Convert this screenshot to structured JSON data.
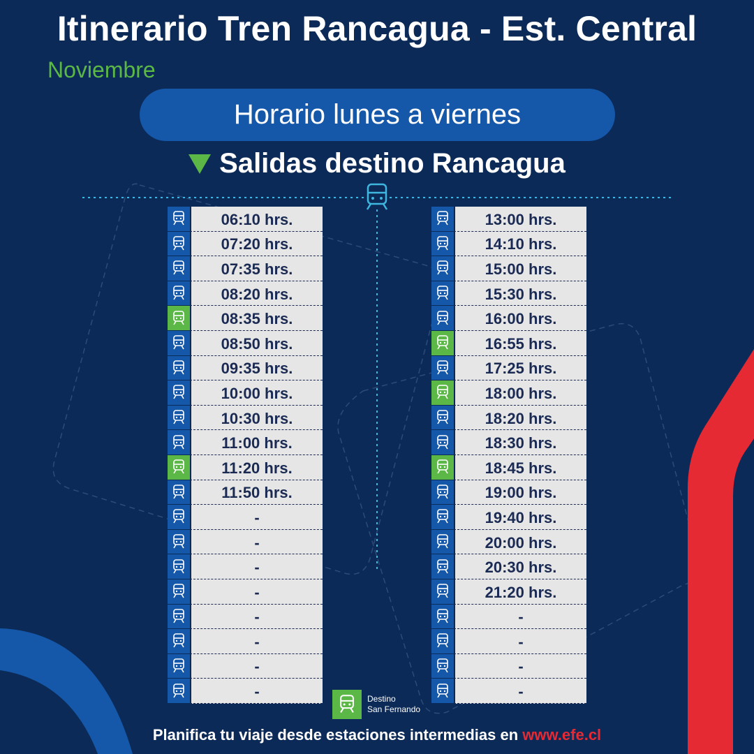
{
  "header": {
    "title": "Itinerario Tren Rancagua - Est. Central",
    "month": "Noviembre"
  },
  "schedule": {
    "day_label": "Horario lunes a viernes",
    "direction_label": "Salidas destino Rancagua"
  },
  "departures_left": [
    {
      "time": "06:10 hrs.",
      "san_fernando": false
    },
    {
      "time": "07:20 hrs.",
      "san_fernando": false
    },
    {
      "time": "07:35 hrs.",
      "san_fernando": false
    },
    {
      "time": "08:20 hrs.",
      "san_fernando": false
    },
    {
      "time": "08:35 hrs.",
      "san_fernando": true
    },
    {
      "time": "08:50 hrs.",
      "san_fernando": false
    },
    {
      "time": "09:35 hrs.",
      "san_fernando": false
    },
    {
      "time": "10:00 hrs.",
      "san_fernando": false
    },
    {
      "time": "10:30 hrs.",
      "san_fernando": false
    },
    {
      "time": "11:00 hrs.",
      "san_fernando": false
    },
    {
      "time": "11:20 hrs.",
      "san_fernando": true
    },
    {
      "time": "11:50 hrs.",
      "san_fernando": false
    },
    {
      "time": "-",
      "san_fernando": false
    },
    {
      "time": "-",
      "san_fernando": false
    },
    {
      "time": "-",
      "san_fernando": false
    },
    {
      "time": "-",
      "san_fernando": false
    },
    {
      "time": "-",
      "san_fernando": false
    },
    {
      "time": "-",
      "san_fernando": false
    },
    {
      "time": "-",
      "san_fernando": false
    },
    {
      "time": "-",
      "san_fernando": false
    }
  ],
  "departures_right": [
    {
      "time": "13:00 hrs.",
      "san_fernando": false
    },
    {
      "time": "14:10 hrs.",
      "san_fernando": false
    },
    {
      "time": "15:00 hrs.",
      "san_fernando": false
    },
    {
      "time": "15:30 hrs.",
      "san_fernando": false
    },
    {
      "time": "16:00 hrs.",
      "san_fernando": false
    },
    {
      "time": "16:55 hrs.",
      "san_fernando": true
    },
    {
      "time": "17:25 hrs.",
      "san_fernando": false
    },
    {
      "time": "18:00 hrs.",
      "san_fernando": true
    },
    {
      "time": "18:20 hrs.",
      "san_fernando": false
    },
    {
      "time": "18:30 hrs.",
      "san_fernando": false
    },
    {
      "time": "18:45 hrs.",
      "san_fernando": true
    },
    {
      "time": "19:00 hrs.",
      "san_fernando": false
    },
    {
      "time": "19:40 hrs.",
      "san_fernando": false
    },
    {
      "time": "20:00 hrs.",
      "san_fernando": false
    },
    {
      "time": "20:30 hrs.",
      "san_fernando": false
    },
    {
      "time": "21:20 hrs.",
      "san_fernando": false
    },
    {
      "time": "-",
      "san_fernando": false
    },
    {
      "time": "-",
      "san_fernando": false
    },
    {
      "time": "-",
      "san_fernando": false
    },
    {
      "time": "-",
      "san_fernando": false
    }
  ],
  "legend": {
    "line1": "Destino",
    "line2": "San Fernando"
  },
  "footer": {
    "text": "Planifica tu viaje desde estaciones intermedias en ",
    "link": "www.efe.cl"
  },
  "colors": {
    "background": "#0c2a57",
    "blue": "#1557a8",
    "green": "#5cb846",
    "red": "#e52a33",
    "cell": "#e6e6e6"
  },
  "icons": {
    "row_icon": "train-icon",
    "header_icon": "train-icon"
  }
}
